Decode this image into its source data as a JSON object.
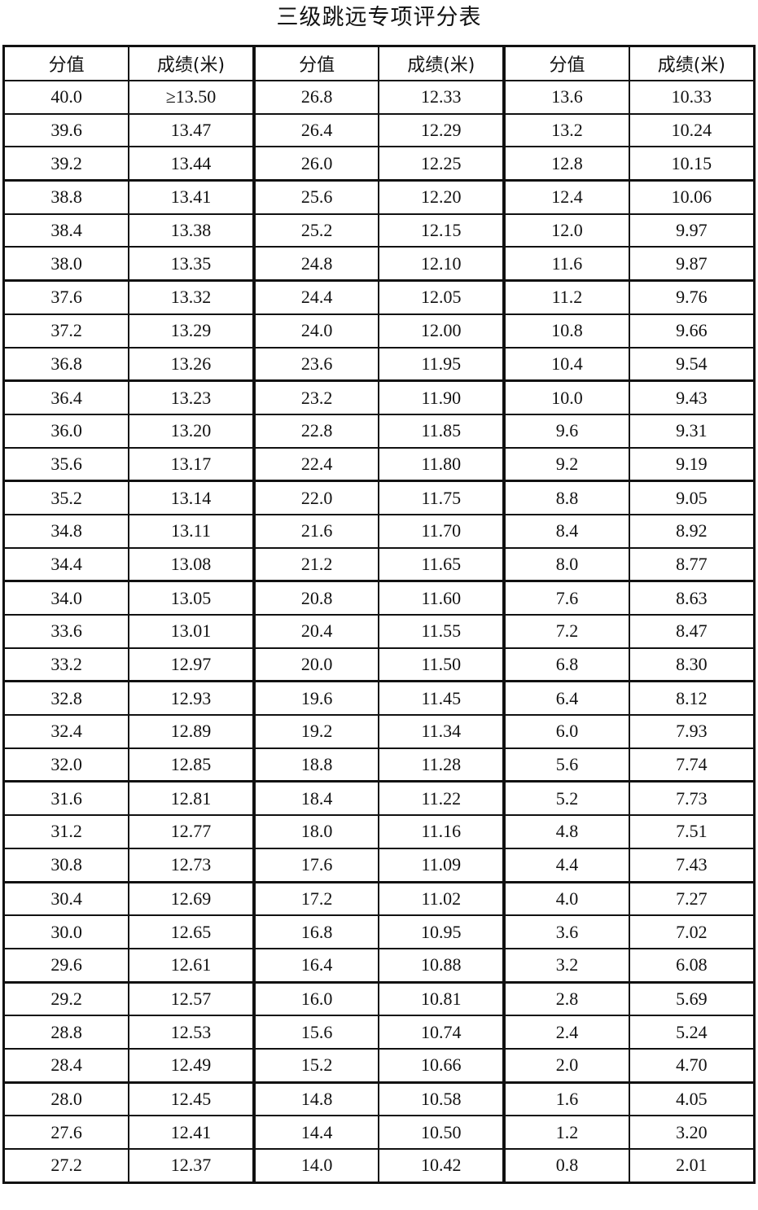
{
  "title": "三级跳远专项评分表",
  "headers": [
    "分值",
    "成绩(米)",
    "分值",
    "成绩(米)",
    "分值",
    "成绩(米)"
  ],
  "rows": [
    [
      "40.0",
      "≥13.50",
      "26.8",
      "12.33",
      "13.6",
      "10.33"
    ],
    [
      "39.6",
      "13.47",
      "26.4",
      "12.29",
      "13.2",
      "10.24"
    ],
    [
      "39.2",
      "13.44",
      "26.0",
      "12.25",
      "12.8",
      "10.15"
    ],
    [
      "38.8",
      "13.41",
      "25.6",
      "12.20",
      "12.4",
      "10.06"
    ],
    [
      "38.4",
      "13.38",
      "25.2",
      "12.15",
      "12.0",
      "9.97"
    ],
    [
      "38.0",
      "13.35",
      "24.8",
      "12.10",
      "11.6",
      "9.87"
    ],
    [
      "37.6",
      "13.32",
      "24.4",
      "12.05",
      "11.2",
      "9.76"
    ],
    [
      "37.2",
      "13.29",
      "24.0",
      "12.00",
      "10.8",
      "9.66"
    ],
    [
      "36.8",
      "13.26",
      "23.6",
      "11.95",
      "10.4",
      "9.54"
    ],
    [
      "36.4",
      "13.23",
      "23.2",
      "11.90",
      "10.0",
      "9.43"
    ],
    [
      "36.0",
      "13.20",
      "22.8",
      "11.85",
      "9.6",
      "9.31"
    ],
    [
      "35.6",
      "13.17",
      "22.4",
      "11.80",
      "9.2",
      "9.19"
    ],
    [
      "35.2",
      "13.14",
      "22.0",
      "11.75",
      "8.8",
      "9.05"
    ],
    [
      "34.8",
      "13.11",
      "21.6",
      "11.70",
      "8.4",
      "8.92"
    ],
    [
      "34.4",
      "13.08",
      "21.2",
      "11.65",
      "8.0",
      "8.77"
    ],
    [
      "34.0",
      "13.05",
      "20.8",
      "11.60",
      "7.6",
      "8.63"
    ],
    [
      "33.6",
      "13.01",
      "20.4",
      "11.55",
      "7.2",
      "8.47"
    ],
    [
      "33.2",
      "12.97",
      "20.0",
      "11.50",
      "6.8",
      "8.30"
    ],
    [
      "32.8",
      "12.93",
      "19.6",
      "11.45",
      "6.4",
      "8.12"
    ],
    [
      "32.4",
      "12.89",
      "19.2",
      "11.34",
      "6.0",
      "7.93"
    ],
    [
      "32.0",
      "12.85",
      "18.8",
      "11.28",
      "5.6",
      "7.74"
    ],
    [
      "31.6",
      "12.81",
      "18.4",
      "11.22",
      "5.2",
      "7.73"
    ],
    [
      "31.2",
      "12.77",
      "18.0",
      "11.16",
      "4.8",
      "7.51"
    ],
    [
      "30.8",
      "12.73",
      "17.6",
      "11.09",
      "4.4",
      "7.43"
    ],
    [
      "30.4",
      "12.69",
      "17.2",
      "11.02",
      "4.0",
      "7.27"
    ],
    [
      "30.0",
      "12.65",
      "16.8",
      "10.95",
      "3.6",
      "7.02"
    ],
    [
      "29.6",
      "12.61",
      "16.4",
      "10.88",
      "3.2",
      "6.08"
    ],
    [
      "29.2",
      "12.57",
      "16.0",
      "10.81",
      "2.8",
      "5.69"
    ],
    [
      "28.8",
      "12.53",
      "15.6",
      "10.74",
      "2.4",
      "5.24"
    ],
    [
      "28.4",
      "12.49",
      "15.2",
      "10.66",
      "2.0",
      "4.70"
    ],
    [
      "28.0",
      "12.45",
      "14.8",
      "10.58",
      "1.6",
      "4.05"
    ],
    [
      "27.6",
      "12.41",
      "14.4",
      "10.50",
      "1.2",
      "3.20"
    ],
    [
      "27.2",
      "12.37",
      "14.0",
      "10.42",
      "0.8",
      "2.01"
    ]
  ]
}
